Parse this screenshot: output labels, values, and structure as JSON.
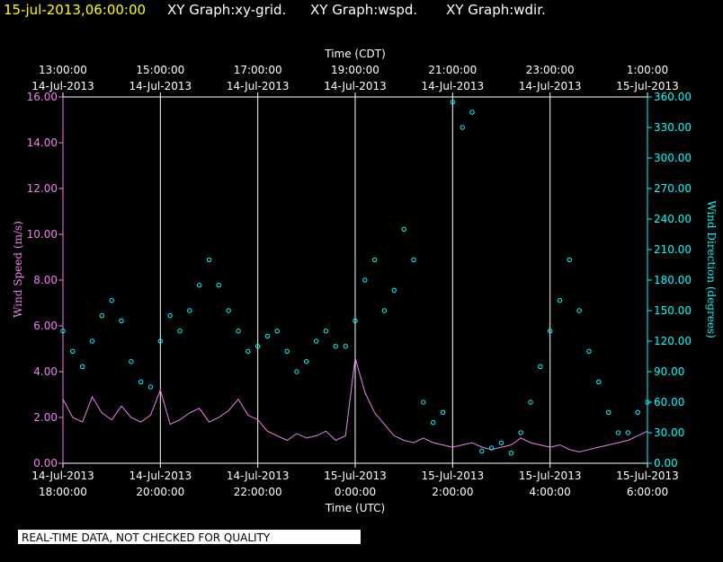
{
  "header": {
    "timestamp": "15-jul-2013,06:00:00",
    "titles": [
      "XY Graph:xy-grid.",
      "XY Graph:wspd.",
      "XY Graph:wdir."
    ]
  },
  "footer": {
    "disclaimer": "REAL-TIME DATA, NOT CHECKED FOR QUALITY"
  },
  "colors": {
    "background": "#000000",
    "timestamp": "#ffff00",
    "title": "#ffffff",
    "speed": "#ee82ee",
    "direction": "#00ffff",
    "grid": "#ffffff"
  },
  "chart_data": {
    "type": "line",
    "top_axis_title": "Time (CDT)",
    "bottom_axis_title": "Time (UTC)",
    "left_axis_title": "Wind Speed (m/s)",
    "right_axis_title": "Wind Direction (degrees)",
    "top_ticks": [
      {
        "time": "13:00:00",
        "date": "14-Jul-2013"
      },
      {
        "time": "15:00:00",
        "date": "14-Jul-2013"
      },
      {
        "time": "17:00:00",
        "date": "14-Jul-2013"
      },
      {
        "time": "19:00:00",
        "date": "14-Jul-2013"
      },
      {
        "time": "21:00:00",
        "date": "14-Jul-2013"
      },
      {
        "time": "23:00:00",
        "date": "14-Jul-2013"
      },
      {
        "time": "1:00:00",
        "date": "15-Jul-2013"
      }
    ],
    "bottom_ticks": [
      {
        "date": "14-Jul-2013",
        "time": "18:00:00"
      },
      {
        "date": "14-Jul-2013",
        "time": "20:00:00"
      },
      {
        "date": "14-Jul-2013",
        "time": "22:00:00"
      },
      {
        "date": "15-Jul-2013",
        "time": "0:00:00"
      },
      {
        "date": "15-Jul-2013",
        "time": "2:00:00"
      },
      {
        "date": "15-Jul-2013",
        "time": "4:00:00"
      },
      {
        "date": "15-Jul-2013",
        "time": "6:00:00"
      }
    ],
    "x_range_utc": [
      "2013-07-14 18:00:00",
      "2013-07-15 06:00:00"
    ],
    "left_ylim": [
      0,
      16
    ],
    "left_ticks": [
      "0.00",
      "2.00",
      "4.00",
      "6.00",
      "8.00",
      "10.00",
      "12.00",
      "14.00",
      "16.00"
    ],
    "right_ylim": [
      0,
      360
    ],
    "right_ticks": [
      "0.00",
      "30.00",
      "60.00",
      "90.00",
      "120.00",
      "150.00",
      "180.00",
      "210.00",
      "240.00",
      "270.00",
      "300.00",
      "330.00",
      "360.00"
    ],
    "grid_vertical": true,
    "series": [
      {
        "name": "Wind Speed (m/s)",
        "axis": "left",
        "style": "line",
        "x_hours_utc": [
          18,
          18.2,
          18.4,
          18.6,
          18.8,
          19,
          19.2,
          19.4,
          19.6,
          19.8,
          20,
          20.2,
          20.4,
          20.6,
          20.8,
          21,
          21.2,
          21.4,
          21.6,
          21.8,
          22,
          22.2,
          22.4,
          22.6,
          22.8,
          23,
          23.2,
          23.4,
          23.6,
          23.8,
          24,
          24.2,
          24.4,
          24.6,
          24.8,
          25,
          25.2,
          25.4,
          25.6,
          25.8,
          26,
          26.2,
          26.4,
          26.6,
          26.8,
          27,
          27.2,
          27.4,
          27.6,
          27.8,
          28,
          28.2,
          28.4,
          28.6,
          28.8,
          29,
          29.2,
          29.4,
          29.6,
          29.8,
          30
        ],
        "values": [
          2.8,
          2.0,
          1.8,
          2.9,
          2.2,
          1.9,
          2.5,
          2.0,
          1.8,
          2.1,
          3.2,
          1.7,
          1.9,
          2.2,
          2.4,
          1.8,
          2.0,
          2.3,
          2.8,
          2.1,
          1.9,
          1.4,
          1.2,
          1.0,
          1.3,
          1.1,
          1.2,
          1.4,
          1.0,
          1.2,
          4.6,
          3.1,
          2.2,
          1.7,
          1.2,
          1.0,
          0.9,
          1.1,
          0.9,
          0.8,
          0.7,
          0.8,
          0.9,
          0.7,
          0.6,
          0.7,
          0.8,
          1.1,
          0.9,
          0.8,
          0.7,
          0.8,
          0.6,
          0.5,
          0.6,
          0.7,
          0.8,
          0.9,
          1.0,
          1.2,
          1.4
        ]
      },
      {
        "name": "Wind Direction (degrees)",
        "axis": "right",
        "style": "markers",
        "x_hours_utc": [
          18,
          18.2,
          18.4,
          18.6,
          18.8,
          19,
          19.2,
          19.4,
          19.6,
          19.8,
          20,
          20.2,
          20.4,
          20.6,
          20.8,
          21,
          21.2,
          21.4,
          21.6,
          21.8,
          22,
          22.2,
          22.4,
          22.6,
          22.8,
          23,
          23.2,
          23.4,
          23.6,
          23.8,
          24,
          24.2,
          24.4,
          24.6,
          24.8,
          25,
          25.2,
          25.4,
          25.6,
          25.8,
          26,
          26.2,
          26.4,
          26.6,
          26.8,
          27,
          27.2,
          27.4,
          27.6,
          27.8,
          28,
          28.2,
          28.4,
          28.6,
          28.8,
          29,
          29.2,
          29.4,
          29.6,
          29.8,
          30
        ],
        "values": [
          130,
          110,
          95,
          120,
          145,
          160,
          140,
          100,
          80,
          75,
          120,
          145,
          130,
          150,
          175,
          200,
          175,
          150,
          130,
          110,
          115,
          125,
          130,
          110,
          90,
          100,
          120,
          130,
          115,
          115,
          140,
          180,
          200,
          150,
          170,
          230,
          200,
          60,
          40,
          50,
          355,
          330,
          345,
          12,
          15,
          20,
          10,
          30,
          60,
          95,
          130,
          160,
          200,
          150,
          110,
          80,
          50,
          30,
          30,
          50,
          60
        ]
      }
    ]
  }
}
